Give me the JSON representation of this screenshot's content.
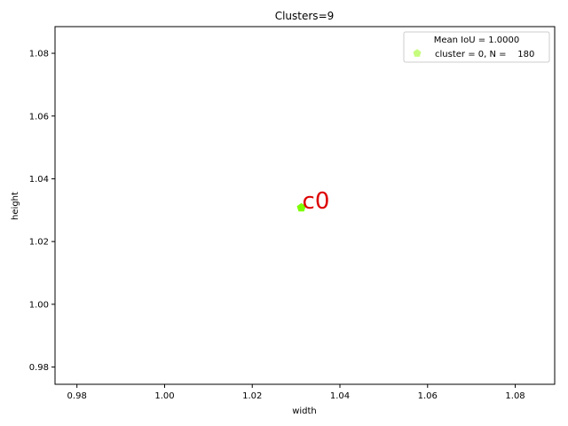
{
  "chart_data": {
    "type": "scatter",
    "title": "Clusters=9",
    "xlabel": "width",
    "ylabel": "height",
    "xlim": [
      0.975,
      1.089
    ],
    "ylim": [
      0.9745,
      1.0885
    ],
    "xticks": [
      0.98,
      1.0,
      1.02,
      1.04,
      1.06,
      1.08
    ],
    "xtick_labels": [
      "0.98",
      "1.00",
      "1.02",
      "1.04",
      "1.06",
      "1.08"
    ],
    "yticks": [
      0.98,
      1.0,
      1.02,
      1.04,
      1.06,
      1.08
    ],
    "ytick_labels": [
      "0.98",
      "1.00",
      "1.02",
      "1.04",
      "1.06",
      "1.08"
    ],
    "grid": false,
    "legend": {
      "placement": "top-right",
      "title": "Mean IoU = 1.0000",
      "entries": [
        {
          "label": "cluster = 0, N =    180",
          "marker": "pentagon",
          "color": "#c6fc7e"
        }
      ]
    },
    "series": [
      {
        "points": [
          {
            "x": 1.0312,
            "y": 1.0308
          }
        ],
        "marker": "pentagon",
        "color": "#7cfc00"
      }
    ],
    "annotations": [
      {
        "text": "c0",
        "x": 1.0312,
        "y": 1.0308,
        "color": "#dd0000"
      }
    ]
  }
}
